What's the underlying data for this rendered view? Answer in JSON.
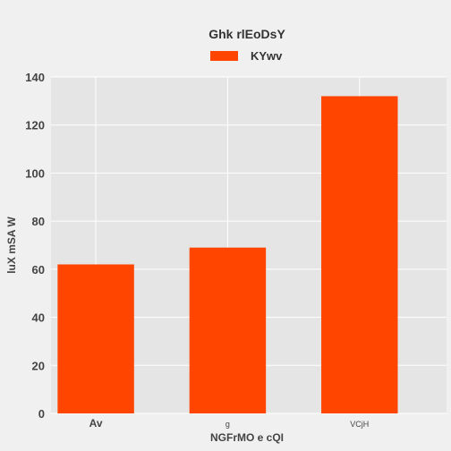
{
  "chart_data": {
    "type": "bar",
    "title": "Ghk rlEoDsY",
    "xlabel": "NGFrMO e cQI",
    "ylabel": "luX mSA W",
    "categories": [
      "Av",
      "g",
      "VCjH"
    ],
    "category_font_sizes": [
      12,
      9,
      9
    ],
    "series": [
      {
        "name": "KYwv",
        "values": [
          62,
          69,
          132
        ],
        "color": "#ff4500"
      }
    ],
    "ylim": [
      0,
      140
    ],
    "yticks": [
      0,
      20,
      40,
      60,
      80,
      100,
      120,
      140
    ],
    "grid": true,
    "legend": "top-center",
    "plot_background": "#e5e5e5",
    "grid_color": "#ffffff"
  }
}
